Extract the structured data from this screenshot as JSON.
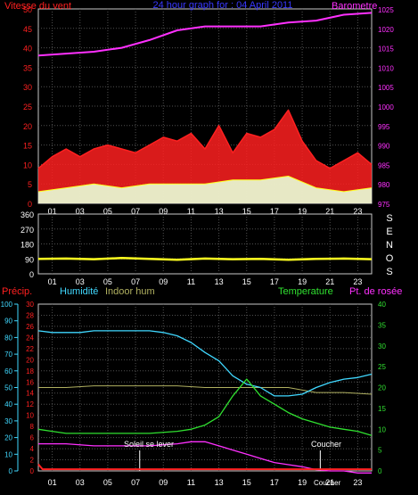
{
  "colors": {
    "red": "#ff2020",
    "blue": "#3838ff",
    "magenta": "#ff30ff",
    "yellow": "#ffff20",
    "cyan": "#40d8ff",
    "green": "#30e030",
    "olive": "#b0b060",
    "white": "#ffffff",
    "gust_fill": "#e8ffd8",
    "frame": "#c8c8c8"
  },
  "chart_data": [
    {
      "type": "line",
      "title": "24 hour graph for : 04 April 2011",
      "left_axis_label": "Vitesse du vent",
      "right_axis_label": "Barometre",
      "x_ticks": [
        "01",
        "03",
        "05",
        "07",
        "09",
        "11",
        "13",
        "15",
        "17",
        "19",
        "21",
        "23"
      ],
      "y_left_range": [
        0,
        50
      ],
      "y_left_ticks": [
        "0",
        "5",
        "10",
        "15",
        "20",
        "25",
        "30",
        "35",
        "40",
        "45",
        "50"
      ],
      "y_right_range": [
        975,
        1025
      ],
      "y_right_ticks": [
        "975",
        "980",
        "985",
        "990",
        "995",
        "1000",
        "1005",
        "1010",
        "1015",
        "1020",
        "1025"
      ],
      "barometer": {
        "x": [
          0,
          2,
          4,
          6,
          8,
          10,
          12,
          14,
          16,
          18,
          20,
          22,
          24
        ],
        "y": [
          1013,
          1013.5,
          1014,
          1015,
          1017,
          1019.5,
          1020.5,
          1020.5,
          1020.5,
          1021.5,
          1022,
          1023.5,
          1024
        ]
      },
      "wind_gust": {
        "x": [
          0,
          1,
          2,
          3,
          4,
          5,
          6,
          7,
          8,
          9,
          10,
          11,
          12,
          13,
          14,
          15,
          16,
          17,
          18,
          19,
          20,
          21,
          22,
          23,
          24
        ],
        "y": [
          9,
          12,
          14,
          12,
          14,
          15,
          14,
          13,
          15,
          17,
          16,
          18,
          14,
          20,
          13,
          18,
          17,
          19,
          24,
          16,
          11,
          9,
          11,
          13,
          10
        ]
      },
      "wind_avg": {
        "x": [
          0,
          2,
          4,
          6,
          8,
          10,
          12,
          14,
          16,
          18,
          20,
          22,
          24
        ],
        "y": [
          3,
          4,
          5,
          4,
          5,
          5,
          5,
          6,
          6,
          7,
          4,
          3,
          4
        ]
      }
    },
    {
      "type": "line",
      "direction_labels": [
        "S",
        "E",
        "N",
        "O",
        "S"
      ],
      "y_range": [
        0,
        360
      ],
      "y_ticks": [
        "0",
        "90",
        "180",
        "270",
        "360"
      ],
      "x_ticks": [
        "01",
        "03",
        "05",
        "07",
        "09",
        "11",
        "13",
        "15",
        "17",
        "19",
        "21",
        "23"
      ],
      "wind_direction": {
        "x": [
          0,
          2,
          4,
          6,
          8,
          10,
          12,
          14,
          16,
          18,
          20,
          22,
          24
        ],
        "y": [
          90,
          92,
          88,
          95,
          90,
          85,
          92,
          88,
          90,
          85,
          90,
          92,
          88
        ]
      }
    },
    {
      "type": "line",
      "labels": {
        "precip": "Précip.",
        "humidity": "Humidité",
        "indoor_hum": "Indoor hum",
        "temperature": "Temperature",
        "dewpoint": "Pt. de rosée",
        "sunrise": "Soleil se lever",
        "sunset": "Coucher",
        "sunset_axis": "Coucher"
      },
      "x_ticks": [
        "01",
        "03",
        "05",
        "07",
        "09",
        "11",
        "13",
        "15",
        "17",
        "19",
        "21",
        "23"
      ],
      "precip_ticks": [
        "0",
        "10",
        "20",
        "30",
        "40",
        "50",
        "60",
        "70",
        "80",
        "90",
        "100"
      ],
      "humidity_ticks": [
        "0",
        "2",
        "4",
        "6",
        "8",
        "10",
        "12",
        "14",
        "16",
        "18",
        "20",
        "22",
        "24",
        "26",
        "28",
        "30"
      ],
      "temp_ticks": [
        "0",
        "5",
        "10",
        "15",
        "20",
        "25",
        "30",
        "35",
        "40"
      ],
      "humidity_range": [
        0,
        100
      ],
      "temp_range": [
        0,
        40
      ],
      "sunrise_hour": 7.3,
      "sunset_hour": 20.3,
      "humidity": {
        "x": [
          0,
          1,
          2,
          3,
          4,
          6,
          8,
          9,
          10,
          11,
          12,
          13,
          14,
          15,
          16,
          17,
          18,
          19,
          20,
          21,
          22,
          23,
          24
        ],
        "y": [
          84,
          83,
          83,
          83,
          84,
          84,
          84,
          83,
          81,
          77,
          71,
          66,
          57,
          52,
          50,
          45,
          45,
          46,
          50,
          53,
          55,
          56,
          58
        ]
      },
      "indoor_hum": {
        "x": [
          0,
          2,
          4,
          6,
          8,
          10,
          12,
          14,
          16,
          18,
          20,
          22,
          24
        ],
        "y": [
          50,
          50,
          51,
          51,
          51,
          51,
          50,
          50,
          50,
          50,
          47,
          47,
          46
        ]
      },
      "temperature": {
        "x": [
          0,
          1,
          2,
          4,
          6,
          8,
          10,
          11,
          12,
          13,
          14,
          15,
          16,
          17,
          18,
          19,
          20,
          21,
          22,
          23,
          24
        ],
        "y": [
          10,
          9.5,
          9,
          9,
          9,
          9,
          9.5,
          10,
          11,
          13,
          18,
          22,
          18,
          16,
          14,
          12.5,
          11.5,
          10.5,
          10,
          9.5,
          8.5
        ]
      },
      "dewpoint": {
        "x": [
          0,
          2,
          4,
          6,
          8,
          10,
          11,
          12,
          13,
          14,
          15,
          16,
          17,
          18,
          19,
          20,
          21,
          22,
          23,
          24
        ],
        "y": [
          6.5,
          6.5,
          6,
          6,
          6,
          6.5,
          7,
          7,
          6,
          5,
          4,
          3,
          2,
          1.5,
          1,
          0.3,
          0,
          0,
          -0.5,
          -0.5
        ]
      },
      "precip": {
        "x": [
          0,
          0.3,
          24
        ],
        "y": [
          4,
          1,
          1
        ]
      }
    }
  ]
}
